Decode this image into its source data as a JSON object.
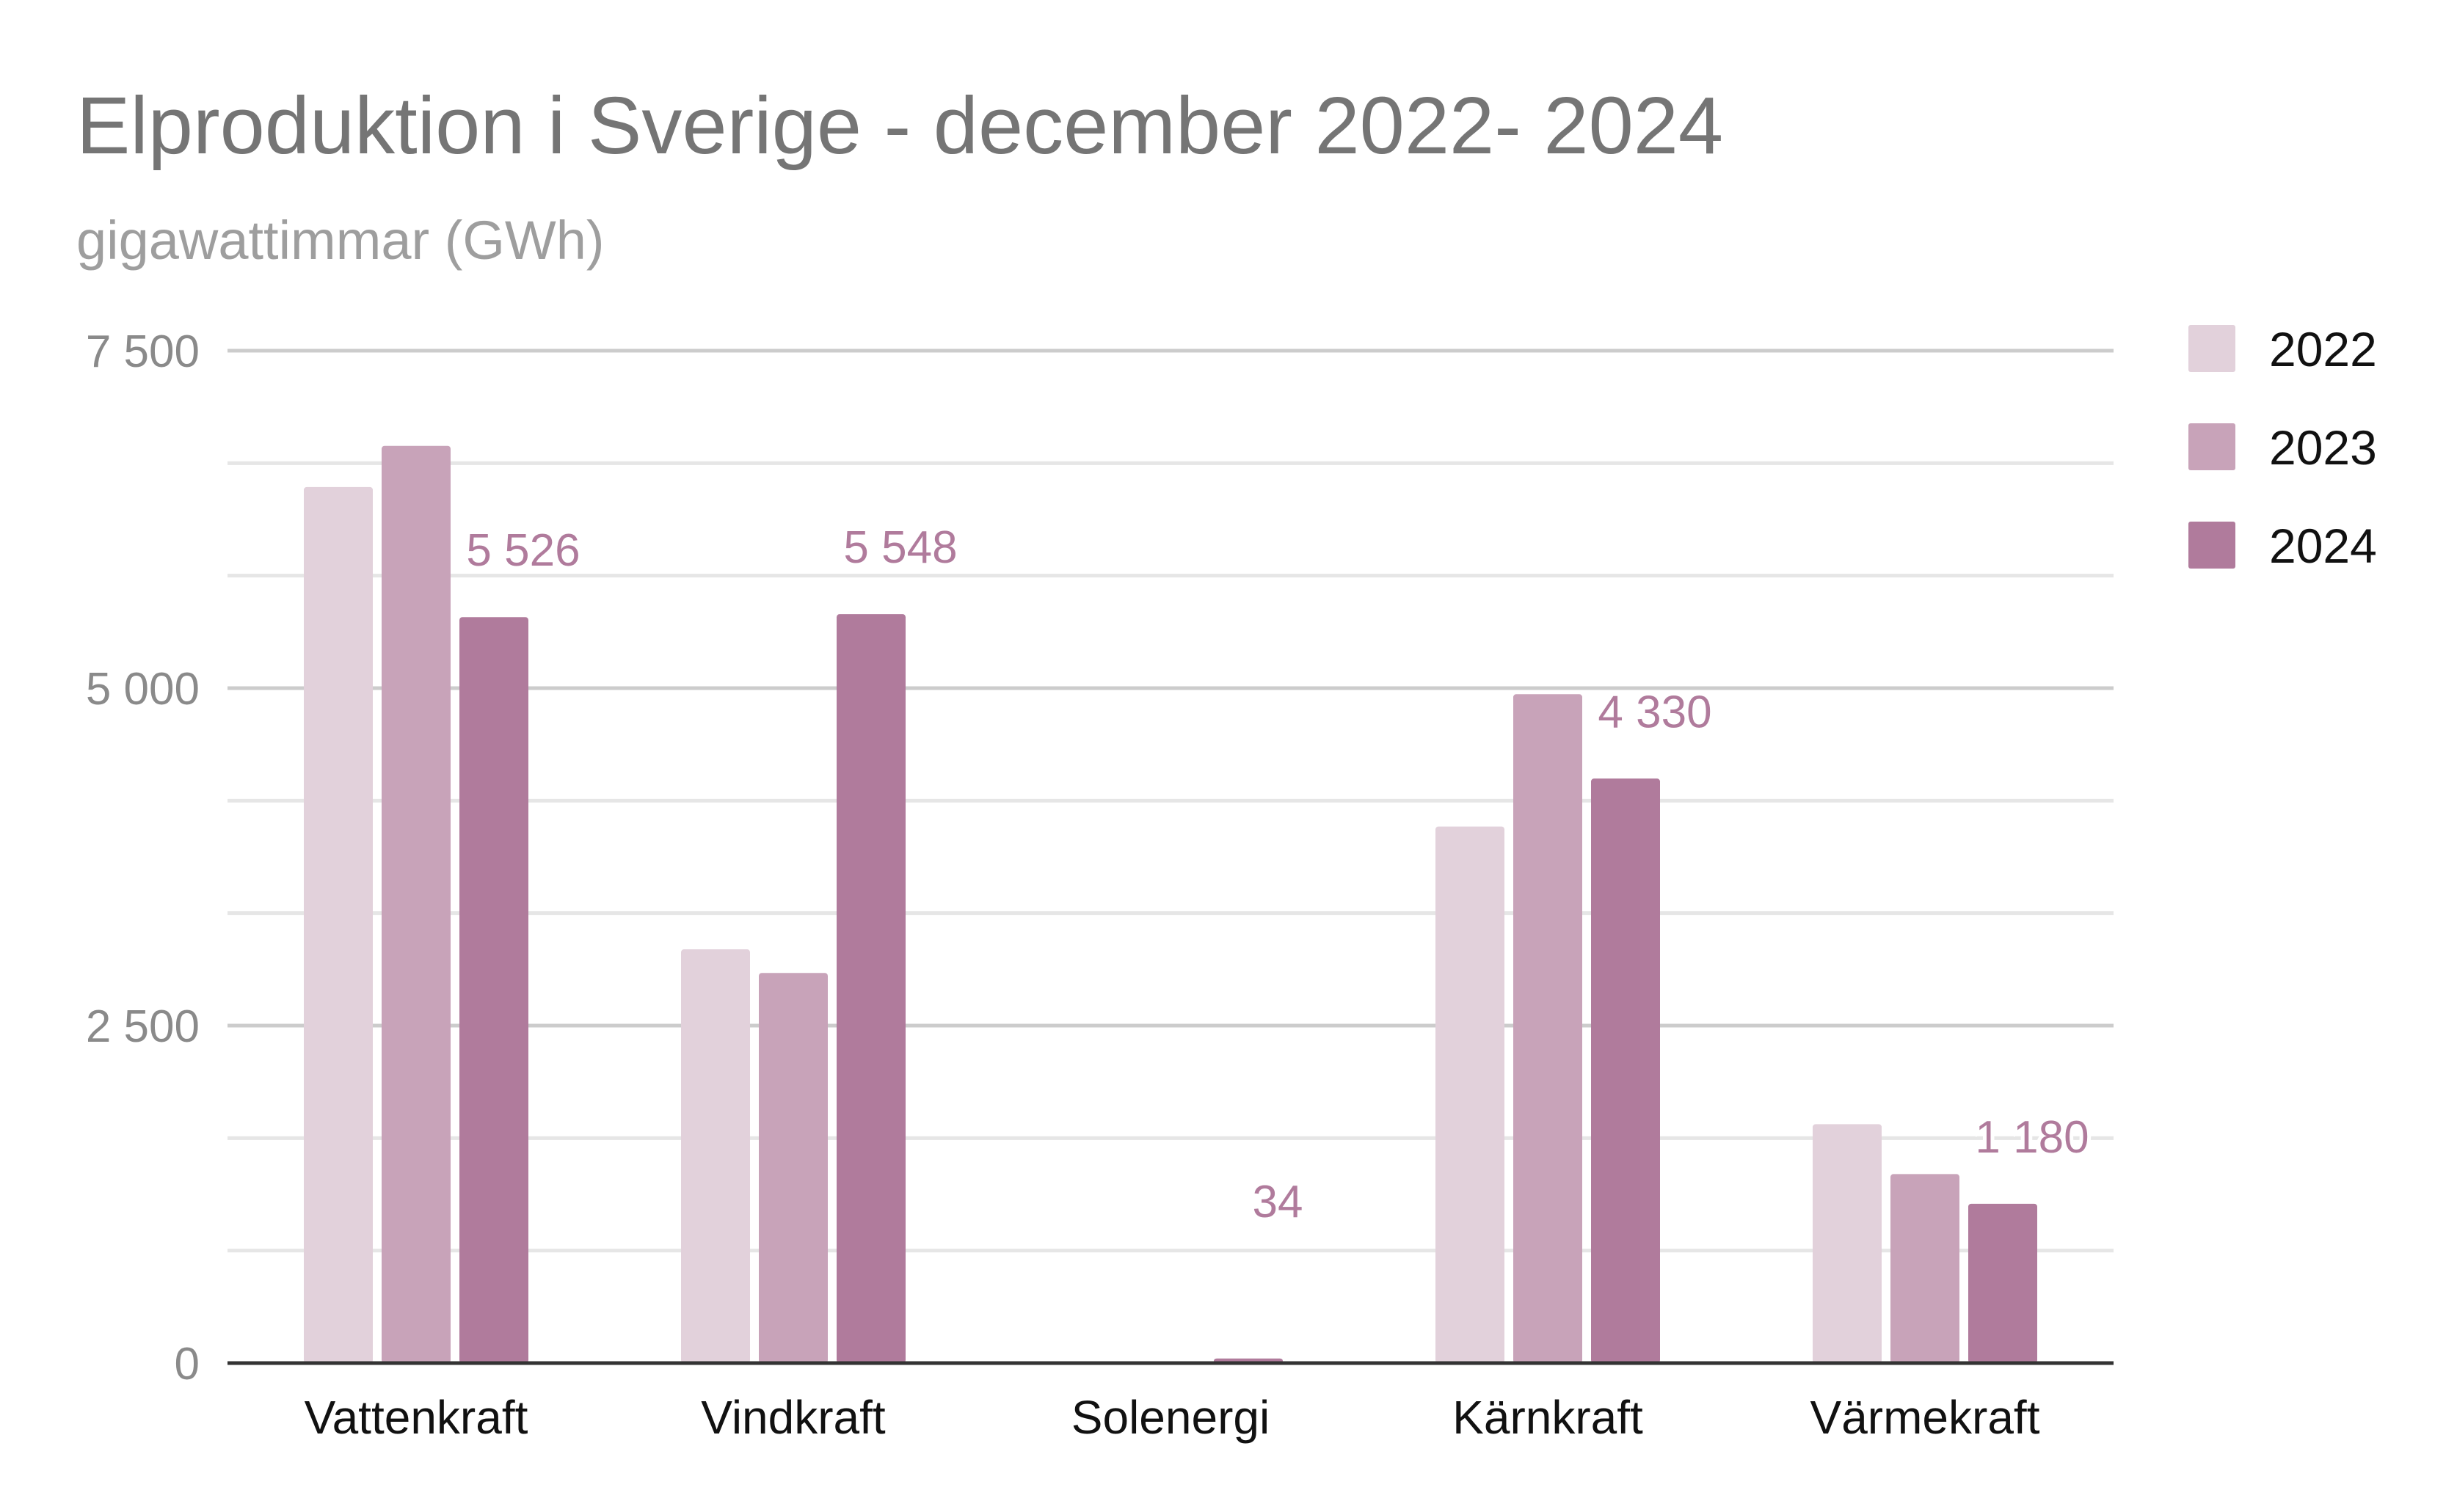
{
  "chart_data": {
    "type": "bar",
    "title": "Elproduktion i Sverige - december 2022- 2024",
    "subtitle": "gigawattimmar (GWh)",
    "xlabel": "",
    "ylabel": "",
    "categories": [
      "Vattenkraft",
      "Vindkraft",
      "Solenergi",
      "Kärnkraft",
      "Värmekraft"
    ],
    "series": [
      {
        "name": "2022",
        "values": [
          6490,
          3065,
          0,
          3975,
          1770
        ],
        "color": "#e2d1db"
      },
      {
        "name": "2023",
        "values": [
          6795,
          2890,
          0,
          4955,
          1400
        ],
        "color": "#c8a3b9"
      },
      {
        "name": "2024",
        "values": [
          5526,
          5548,
          34,
          4330,
          1180
        ],
        "color": "#b07b9c"
      }
    ],
    "data_labels": {
      "series": "2024",
      "values": [
        "5 526",
        "5 548",
        "34",
        "4 330",
        "1 180"
      ],
      "color": "#b07b9c"
    },
    "yticks": [
      {
        "value": 0,
        "label": "0"
      },
      {
        "value": 2500,
        "label": "2 500"
      },
      {
        "value": 5000,
        "label": "5 000"
      },
      {
        "value": 7500,
        "label": "7 500"
      }
    ],
    "minor_grid": [
      833.33,
      1666.67,
      3333.33,
      4166.67,
      5833.33,
      6666.67
    ],
    "ylim": [
      0,
      7500
    ],
    "grid": true,
    "legend_position": "right"
  }
}
